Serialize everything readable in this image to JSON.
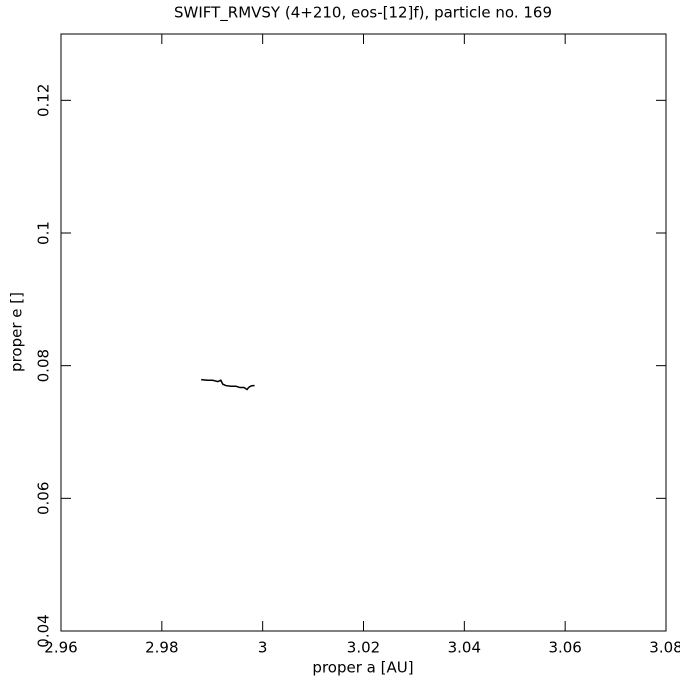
{
  "chart_data": {
    "type": "line",
    "title": "SWIFT_RMVSY (4+210, eos-[12]f), particle no. 169",
    "x_label": "proper a [AU]",
    "y_label": "proper e []",
    "xlim": [
      2.96,
      3.08
    ],
    "xticks": [
      2.96,
      2.98,
      3,
      3.02,
      3.04,
      3.06,
      3.08
    ],
    "ylim": [
      0.04,
      0.13
    ],
    "yticks": [
      0.04,
      0.06,
      0.08,
      0.1,
      0.12
    ],
    "grid": false,
    "series": [
      {
        "color": "#000000",
        "x": [
          2.9878,
          2.989,
          2.9901,
          2.9911,
          2.9917,
          2.9921,
          2.9927,
          2.9937,
          2.9947,
          2.9955,
          2.9963,
          2.9969,
          2.9972,
          2.9976,
          2.998,
          2.9984
        ],
        "values": [
          0.0779,
          0.0778,
          0.0778,
          0.0776,
          0.0778,
          0.0772,
          0.077,
          0.0769,
          0.0769,
          0.0767,
          0.0767,
          0.0764,
          0.0767,
          0.0769,
          0.077,
          0.077
        ]
      }
    ]
  }
}
